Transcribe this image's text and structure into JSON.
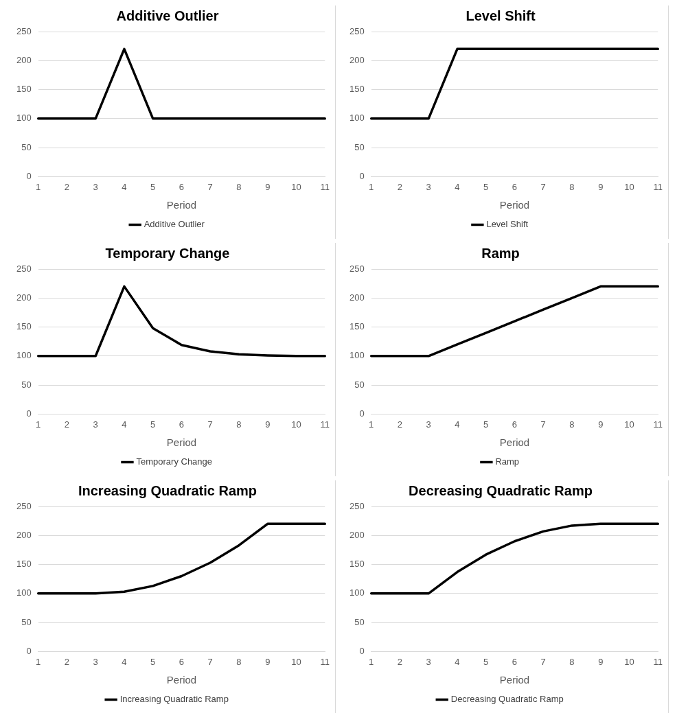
{
  "chart_data": [
    {
      "type": "line",
      "title": "Additive Outlier",
      "xlabel": "Period",
      "categories": [
        "1",
        "2",
        "3",
        "4",
        "5",
        "6",
        "7",
        "8",
        "9",
        "10",
        "11"
      ],
      "ylim": [
        0,
        250
      ],
      "yticks": [
        0,
        50,
        100,
        150,
        200,
        250
      ],
      "grid": "y",
      "legend": "bottom",
      "marker": "none",
      "series": [
        {
          "name": "Additive Outlier",
          "color": "#000000",
          "values": [
            100,
            100,
            100,
            220,
            100,
            100,
            100,
            100,
            100,
            100,
            100
          ]
        }
      ]
    },
    {
      "type": "line",
      "title": "Level Shift",
      "xlabel": "Period",
      "categories": [
        "1",
        "2",
        "3",
        "4",
        "5",
        "6",
        "7",
        "8",
        "9",
        "10",
        "11"
      ],
      "ylim": [
        0,
        250
      ],
      "yticks": [
        0,
        50,
        100,
        150,
        200,
        250
      ],
      "grid": "y",
      "legend": "bottom",
      "marker": "none",
      "series": [
        {
          "name": "Level Shift",
          "color": "#000000",
          "values": [
            100,
            100,
            100,
            220,
            220,
            220,
            220,
            220,
            220,
            220,
            220
          ]
        }
      ]
    },
    {
      "type": "line",
      "title": "Temporary Change",
      "xlabel": "Period",
      "categories": [
        "1",
        "2",
        "3",
        "4",
        "5",
        "6",
        "7",
        "8",
        "9",
        "10",
        "11"
      ],
      "ylim": [
        0,
        250
      ],
      "yticks": [
        0,
        50,
        100,
        150,
        200,
        250
      ],
      "grid": "y",
      "legend": "bottom",
      "marker": "none",
      "series": [
        {
          "name": "Temporary Change",
          "color": "#000000",
          "values": [
            100,
            100,
            100,
            220,
            148,
            119,
            108,
            103,
            101,
            100,
            100
          ]
        }
      ]
    },
    {
      "type": "line",
      "title": "Ramp",
      "xlabel": "Period",
      "categories": [
        "1",
        "2",
        "3",
        "4",
        "5",
        "6",
        "7",
        "8",
        "9",
        "10",
        "11"
      ],
      "ylim": [
        0,
        250
      ],
      "yticks": [
        0,
        50,
        100,
        150,
        200,
        250
      ],
      "grid": "y",
      "legend": "bottom",
      "marker": "none",
      "series": [
        {
          "name": "Ramp",
          "color": "#000000",
          "values": [
            100,
            100,
            100,
            120,
            140,
            160,
            180,
            200,
            220,
            220,
            220
          ]
        }
      ]
    },
    {
      "type": "line",
      "title": "Increasing Quadratic Ramp",
      "xlabel": "Period",
      "categories": [
        "1",
        "2",
        "3",
        "4",
        "5",
        "6",
        "7",
        "8",
        "9",
        "10",
        "11"
      ],
      "ylim": [
        0,
        250
      ],
      "yticks": [
        0,
        50,
        100,
        150,
        200,
        250
      ],
      "grid": "y",
      "legend": "bottom",
      "marker": "none",
      "series": [
        {
          "name": "Increasing Quadratic Ramp",
          "color": "#000000",
          "values": [
            100,
            100,
            100,
            103,
            113,
            130,
            153,
            183,
            220,
            220,
            220
          ]
        }
      ]
    },
    {
      "type": "line",
      "title": "Decreasing Quadratic Ramp",
      "xlabel": "Period",
      "categories": [
        "1",
        "2",
        "3",
        "4",
        "5",
        "6",
        "7",
        "8",
        "9",
        "10",
        "11"
      ],
      "ylim": [
        0,
        250
      ],
      "yticks": [
        0,
        50,
        100,
        150,
        200,
        250
      ],
      "grid": "y",
      "legend": "bottom",
      "marker": "none",
      "series": [
        {
          "name": "Decreasing Quadratic Ramp",
          "color": "#000000",
          "values": [
            100,
            100,
            100,
            137,
            167,
            190,
            207,
            217,
            220,
            220,
            220
          ]
        }
      ]
    }
  ]
}
